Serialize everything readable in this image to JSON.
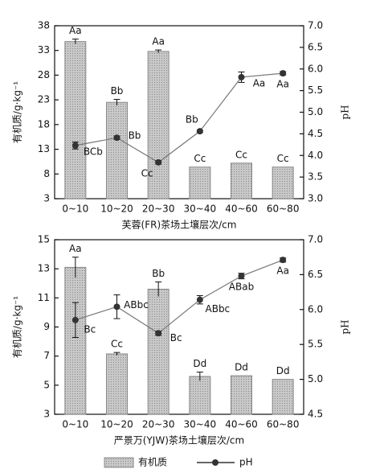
{
  "chart_data": [
    {
      "type": "bar-line",
      "categories": [
        "0~10",
        "10~20",
        "20~30",
        "30~40",
        "40~60",
        "60~80"
      ],
      "x_label": "芙蓉(FR)茶场土壤层次/cm",
      "y_label": "有机质/g·kg⁻¹",
      "y2_label": "pH",
      "ylim": [
        3,
        38
      ],
      "yticks": [
        3,
        8,
        13,
        18,
        23,
        28,
        33,
        38
      ],
      "y2lim": [
        3.0,
        7.0
      ],
      "y2ticks": [
        {
          "value": 3.0,
          "label": "3.0"
        },
        {
          "value": 3.5,
          "label": "3.5"
        },
        {
          "value": 4.0,
          "label": "4.0"
        },
        {
          "value": 4.5,
          "label": "4.5"
        },
        {
          "value": 5.0,
          "label": "5.0"
        },
        {
          "value": 5.5,
          "label": "5.5"
        },
        {
          "value": 6.0,
          "label": "6.0"
        },
        {
          "value": 6.5,
          "label": "6.5"
        },
        {
          "value": 7.0,
          "label": "7.0"
        }
      ],
      "series": [
        {
          "color": "#b8b8b8",
          "values": [
            34.8,
            22.5,
            32.8,
            9.4,
            10.2,
            9.4
          ],
          "errors": [
            0.5,
            0.6,
            0.3,
            0,
            0,
            0
          ],
          "labels": [
            "Aa",
            "Bb",
            "Aa",
            "Cc",
            "Cc",
            "Cc"
          ]
        },
        {
          "color": "#333333",
          "axis": "y2",
          "values": [
            4.23,
            4.41,
            3.84,
            4.56,
            5.81,
            5.9
          ],
          "errors": [
            0.08,
            0.04,
            0.04,
            0.03,
            0.12,
            0.04
          ],
          "labels": [
            "BCb",
            "Bb",
            "Cc",
            "Bb",
            "Aa",
            "Aa"
          ]
        }
      ]
    },
    {
      "type": "bar-line",
      "categories": [
        "0~10",
        "10~20",
        "20~30",
        "30~40",
        "40~60",
        "60~80"
      ],
      "x_label": "严景万(YJW)茶场土壤层次/cm",
      "y_label": "有机质/g·kg⁻¹",
      "y2_label": "pH",
      "ylim": [
        3,
        15
      ],
      "yticks": [
        3,
        5,
        7,
        9,
        11,
        13,
        15
      ],
      "y2lim": [
        4.5,
        7.0
      ],
      "y2ticks": [
        {
          "value": 4.5,
          "label": "4.5"
        },
        {
          "value": 5.0,
          "label": "5.0"
        },
        {
          "value": 5.5,
          "label": "5.5"
        },
        {
          "value": 6.0,
          "label": "6.0"
        },
        {
          "value": 6.5,
          "label": "6.5"
        },
        {
          "value": 7.0,
          "label": "7.0"
        }
      ],
      "series": [
        {
          "name": "有机质",
          "color": "#b8b8b8",
          "values": [
            13.1,
            7.15,
            11.6,
            5.6,
            5.65,
            5.4
          ],
          "errors": [
            0.7,
            0.1,
            0.5,
            0.3,
            0,
            0
          ],
          "labels": [
            "Aa",
            "Cc",
            "Bb",
            "Dd",
            "Dd",
            "Dd"
          ]
        },
        {
          "name": "pH",
          "color": "#333333",
          "axis": "y2",
          "values": [
            5.85,
            6.04,
            5.66,
            6.14,
            6.48,
            6.71
          ],
          "errors": [
            0.25,
            0.17,
            0.03,
            0.06,
            0.04,
            0.03
          ],
          "labels": [
            "Bc",
            "ABbc",
            "Bc",
            "ABbc",
            "ABab",
            "Aa"
          ]
        }
      ]
    }
  ]
}
